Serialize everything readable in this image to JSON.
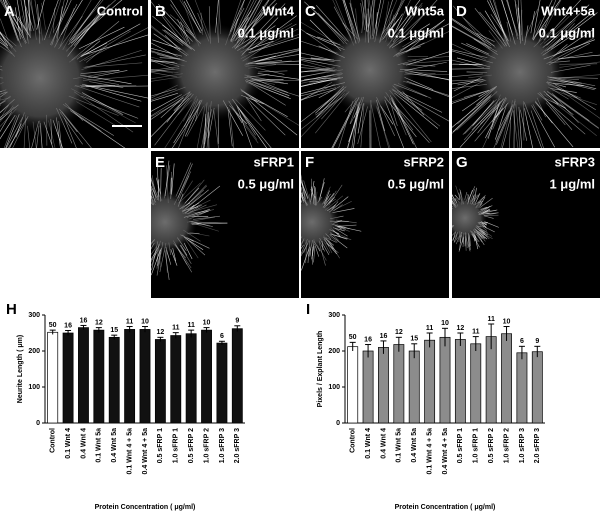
{
  "panels": [
    {
      "letter": "A",
      "lines": [
        "Control"
      ]
    },
    {
      "letter": "B",
      "lines": [
        "Wnt4",
        "0.1 μg/ml"
      ]
    },
    {
      "letter": "C",
      "lines": [
        "Wnt5a",
        "0.1 μg/ml"
      ]
    },
    {
      "letter": "D",
      "lines": [
        "Wnt4+5a",
        "0.1 μg/ml"
      ]
    },
    {
      "letter": "E",
      "lines": [
        "sFRP1",
        "0.5 μg/ml"
      ]
    },
    {
      "letter": "F",
      "lines": [
        "sFRP2",
        "0.5 μg/ml"
      ]
    },
    {
      "letter": "G",
      "lines": [
        "sFRP3",
        "1 μg/ml"
      ]
    }
  ],
  "chart_data": [
    {
      "type": "bar",
      "panel_label": "H",
      "ylabel": "Neurite Length ( μm)",
      "xlabel": "Protein Concentration ( μg/ml)",
      "categories": [
        "Control",
        "0.1 Wnt 4",
        "0.4 Wnt 4",
        "0.1 Wnt 5a",
        "0.4 Wnt 5a",
        "0.1 Wnt 4 + 5a",
        "0.4 Wnt 4 + 5a",
        "0.5 sFRP 1",
        "1.0 sFRP 1",
        "0.5 sFRP 2",
        "1.0 sFRP 2",
        "1.0 sFRP 3",
        "2.0 sFRP 3"
      ],
      "values": [
        252,
        250,
        265,
        258,
        238,
        260,
        260,
        232,
        243,
        248,
        258,
        222,
        262
      ],
      "errors": [
        6,
        7,
        6,
        7,
        6,
        8,
        8,
        6,
        8,
        10,
        7,
        5,
        8
      ],
      "n_labels": [
        "50",
        "16",
        "16",
        "12",
        "15",
        "11",
        "10",
        "12",
        "11",
        "11",
        "10",
        "6",
        "9"
      ],
      "colors": [
        "#ffffff",
        "#111111",
        "#111111",
        "#111111",
        "#111111",
        "#111111",
        "#111111",
        "#111111",
        "#111111",
        "#111111",
        "#111111",
        "#111111",
        "#111111"
      ],
      "ylim": [
        0,
        300
      ],
      "yticks": [
        0,
        100,
        200,
        300
      ]
    },
    {
      "type": "bar",
      "panel_label": "I",
      "ylabel": "Pixels / Explant Length",
      "xlabel": "Protein Concentration ( μg/ml)",
      "categories": [
        "Control",
        "0.1 Wnt 4",
        "0.4 Wnt 4",
        "0.1 Wnt 5a",
        "0.4 Wnt 5a",
        "0.1 Wnt 4 + 5a",
        "0.4 Wnt 4 + 5a",
        "0.5 sFRP 1",
        "1.0 sFRP 1",
        "0.5 sFRP 2",
        "1.0 sFRP 2",
        "1.0 sFRP 3",
        "2.0 sFRP 3"
      ],
      "values": [
        212,
        200,
        210,
        218,
        200,
        230,
        238,
        232,
        220,
        240,
        248,
        195,
        198
      ],
      "errors": [
        12,
        18,
        18,
        20,
        20,
        20,
        25,
        18,
        20,
        35,
        20,
        18,
        15
      ],
      "n_labels": [
        "50",
        "16",
        "16",
        "12",
        "15",
        "11",
        "10",
        "12",
        "11",
        "11",
        "10",
        "6",
        "9"
      ],
      "colors": [
        "#ffffff",
        "#8c8c8c",
        "#8c8c8c",
        "#8c8c8c",
        "#8c8c8c",
        "#8c8c8c",
        "#8c8c8c",
        "#8c8c8c",
        "#8c8c8c",
        "#8c8c8c",
        "#8c8c8c",
        "#8c8c8c",
        "#8c8c8c"
      ],
      "ylim": [
        0,
        300
      ],
      "yticks": [
        0,
        100,
        200,
        300
      ]
    }
  ]
}
